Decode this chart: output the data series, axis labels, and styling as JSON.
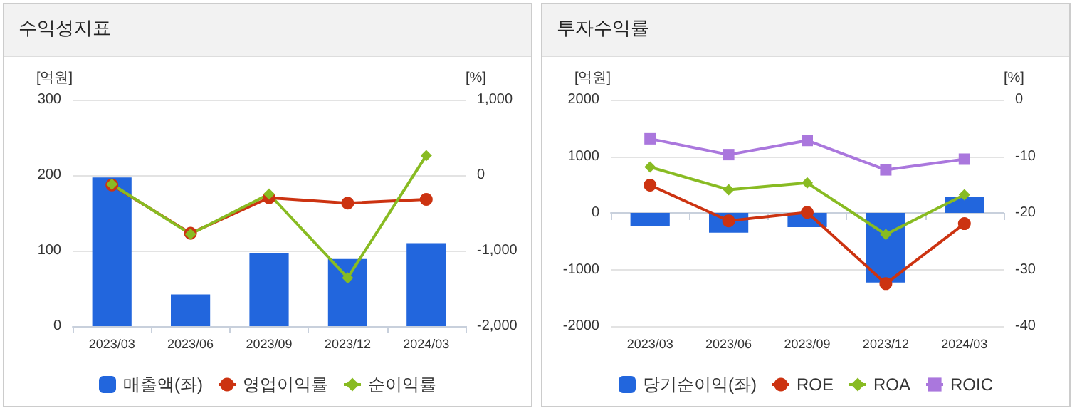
{
  "chart_data": [
    {
      "type": "bar",
      "title": "수익성지표",
      "categories": [
        "2023/03",
        "2023/06",
        "2023/09",
        "2023/12",
        "2024/03"
      ],
      "ylabel": "[억원]",
      "y2label": "[%]",
      "series": [
        {
          "name": "매출액(좌)",
          "color": "#2266dd",
          "values": [
            197,
            42,
            97,
            89,
            110
          ]
        },
        {
          "name": "영업이익률",
          "type": "line",
          "axis": "y2",
          "marker": "circle",
          "color": "#cc3311",
          "values": [
            -130,
            -770,
            -300,
            -370,
            -320
          ]
        },
        {
          "name": "순이익률",
          "type": "line",
          "axis": "y2",
          "marker": "diamond",
          "color": "#88bb22",
          "values": [
            -120,
            -780,
            -250,
            -1360,
            260
          ]
        }
      ],
      "ylim": [
        0,
        300
      ],
      "yticks": [
        0,
        100,
        200,
        300
      ],
      "y2lim": [
        -2000,
        1000
      ],
      "y2ticks": [
        {
          "value": -2000,
          "label": "-2,000"
        },
        {
          "value": -1000,
          "label": "-1,000"
        },
        0,
        {
          "value": 1000,
          "label": "1,000"
        }
      ],
      "grid": "y",
      "legend": "bottom"
    },
    {
      "type": "bar",
      "title": "투자수익률",
      "categories": [
        "2023/03",
        "2023/06",
        "2023/09",
        "2023/12",
        "2024/03"
      ],
      "ylabel": "[억원]",
      "y2label": "[%]",
      "series": [
        {
          "name": "당기순이익(좌)",
          "color": "#2266dd",
          "values": [
            -240,
            -350,
            -250,
            -1230,
            280
          ]
        },
        {
          "name": "ROE",
          "type": "line",
          "axis": "y2",
          "marker": "circle",
          "color": "#cc3311",
          "values": [
            -15.1,
            -21.4,
            -19.9,
            -32.5,
            -21.9
          ]
        },
        {
          "name": "ROA",
          "type": "line",
          "axis": "y2",
          "marker": "diamond",
          "color": "#88bb22",
          "values": [
            -11.9,
            -15.9,
            -14.7,
            -23.8,
            -16.8
          ]
        },
        {
          "name": "ROIC",
          "type": "line",
          "axis": "y2",
          "marker": "square",
          "color": "#aa77dd",
          "values": [
            -6.9,
            -9.7,
            -7.2,
            -12.4,
            -10.5
          ]
        }
      ],
      "ylim": [
        -2000,
        2000
      ],
      "yticks": [
        -2000,
        -1000,
        0,
        1000,
        2000
      ],
      "y2lim": [
        -40,
        0
      ],
      "y2ticks": [
        -40,
        -30,
        -20,
        -10,
        0
      ],
      "grid": "y",
      "legend": "bottom"
    }
  ]
}
